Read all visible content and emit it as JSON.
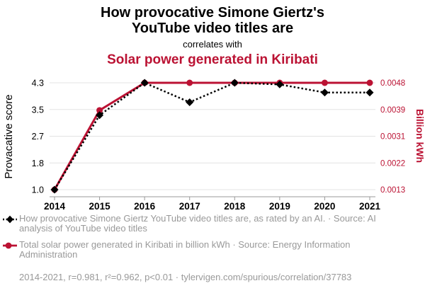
{
  "header": {
    "title_line1": "How provocative Simone Giertz's",
    "title_line2": "YouTube video titles are",
    "connector": "correlates with",
    "subtitle": "Solar power generated in Kiribati"
  },
  "chart_data": {
    "type": "line",
    "x_ticks": [
      "2014",
      "2015",
      "2016",
      "2017",
      "2018",
      "2019",
      "2020",
      "2021"
    ],
    "series": [
      {
        "name": "How provocative Simone Giertz YouTube video titles are, as rated by an AI.",
        "axis": "left",
        "color": "#000000",
        "style": "dotted",
        "marker": "diamond",
        "values": [
          1.0,
          3.3,
          4.3,
          3.7,
          4.3,
          4.25,
          4.0,
          4.0
        ]
      },
      {
        "name": "Total solar power generated in Kiribati in billion kWh",
        "axis": "right",
        "color": "#bb1233",
        "style": "solid",
        "marker": "circle",
        "values": [
          0.0013,
          0.0039,
          0.0048,
          0.0048,
          0.0048,
          0.0048,
          0.0048,
          0.0048
        ]
      }
    ],
    "left_axis": {
      "label": "Provacative score",
      "ticks": [
        "4.3",
        "3.5",
        "2.7",
        "1.8",
        "1.0"
      ],
      "range": [
        1.0,
        4.3
      ]
    },
    "right_axis": {
      "label": "Billion kWh",
      "ticks": [
        "0.0048",
        "0.0039",
        "0.0031",
        "0.0022",
        "0.0013"
      ],
      "range": [
        0.0013,
        0.0048
      ]
    },
    "grid": true,
    "legend_position": "bottom"
  },
  "legend": [
    {
      "text": "How provocative Simone Giertz YouTube video titles are, as rated by an AI. · Source: AI analysis of YouTube video titles"
    },
    {
      "text": "Total solar power generated in Kiribati in billion kWh · Source: Energy Information Administration"
    }
  ],
  "footer": "2014-2021, r=0.981, r²=0.962, p<0.01 · tylervigen.com/spurious/correlation/37783",
  "colors": {
    "accent_red": "#bb1233",
    "text_gray": "#999999",
    "grid": "#e3e3e3",
    "axis": "#999999",
    "ink": "#000000"
  }
}
